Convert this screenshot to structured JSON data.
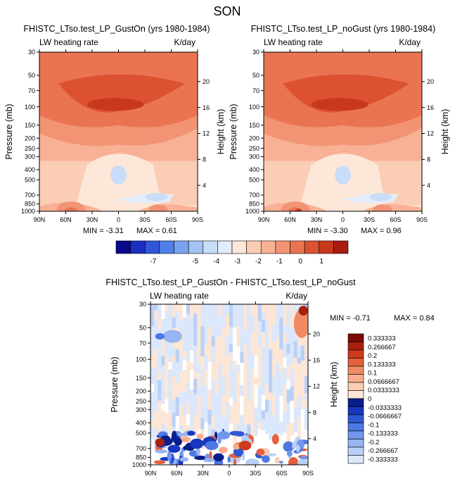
{
  "page_title": "SON",
  "colors": {
    "bg_band": "#fbe3d4",
    "cool": [
      "#08088c",
      "#1a2fbf",
      "#2f56d6",
      "#4f7fe6",
      "#7aa3ef",
      "#a2c3f4",
      "#c9dcf8",
      "#e2edfb"
    ],
    "warm": [
      "#fde7d8",
      "#fbcdb4",
      "#f8b195",
      "#f29474",
      "#ea7452",
      "#dc5231",
      "#c8381c",
      "#a81d0f",
      "#7d0a05"
    ],
    "diff_cool": [
      "#081e8c",
      "#1737bd",
      "#2e57d4",
      "#4d78e3",
      "#7196ec",
      "#97b5f2",
      "#bbd0f7",
      "#dbe7fb"
    ],
    "diff_warm": [
      "#fde6d6",
      "#fbcdb3",
      "#f7ad8c",
      "#f08a63",
      "#e4613c",
      "#cc3b1e",
      "#a8200d",
      "#7a0a04"
    ]
  },
  "chart_data": [
    {
      "type": "heatmap",
      "title": "FHISTC_LTso.test_LP_GustOn (yrs 1980-1984)",
      "left_string": "LW heating rate",
      "right_string": "K/day",
      "ylabel": "Pressure (mb)",
      "ylabel_right": "Height (km)",
      "x_ticks": [
        "90N",
        "60N",
        "30N",
        "0",
        "30S",
        "60S",
        "90S"
      ],
      "y_ticks": [
        "30",
        "50",
        "70",
        "100",
        "150",
        "200",
        "250",
        "300",
        "400",
        "500",
        "700",
        "850",
        "1000"
      ],
      "height_ticks": [
        "20",
        "16",
        "12",
        "8",
        "4"
      ],
      "min_label": "MIN = -3.31",
      "max_label": "MAX =  0.61",
      "min": -3.31,
      "max": 0.61
    },
    {
      "type": "heatmap",
      "title": "FHISTC_LTso.test_LP_noGust (yrs 1980-1984)",
      "left_string": "LW heating rate",
      "right_string": "K/day",
      "ylabel": "Pressure (mb)",
      "ylabel_right": "Height (km)",
      "x_ticks": [
        "90N",
        "60N",
        "30N",
        "0",
        "30S",
        "60S",
        "90S"
      ],
      "y_ticks": [
        "30",
        "50",
        "70",
        "100",
        "150",
        "200",
        "250",
        "300",
        "400",
        "500",
        "700",
        "850",
        "1000"
      ],
      "height_ticks": [
        "20",
        "16",
        "12",
        "8",
        "4"
      ],
      "min_label": "MIN = -3.30",
      "max_label": "MAX =  0.96",
      "min": -3.3,
      "max": 0.96
    },
    {
      "type": "heatmap",
      "title": "FHISTC_LTso.test_LP_GustOn - FHISTC_LTso.test_LP_noGust",
      "left_string": "LW heating rate",
      "right_string": "K/day",
      "ylabel": "Pressure (mb)",
      "ylabel_right": "Height (km)",
      "x_ticks": [
        "90N",
        "60N",
        "30N",
        "0",
        "30S",
        "60S",
        "90S"
      ],
      "y_ticks": [
        "30",
        "50",
        "70",
        "100",
        "150",
        "200",
        "250",
        "300",
        "400",
        "500",
        "700",
        "850",
        "1000"
      ],
      "height_ticks": [
        "20",
        "16",
        "12",
        "8",
        "4"
      ],
      "min_label": "MIN = -0.71",
      "max_label": "MAX =  0.84",
      "min": -0.71,
      "max": 0.84
    }
  ],
  "colorbar_top": {
    "labels": [
      "-7",
      "-5",
      "-4",
      "-3",
      "-2",
      "-1",
      "0",
      "1"
    ]
  },
  "colorbar_diff": {
    "labels": [
      "0.333333",
      "0.266667",
      "0.2",
      "0.133333",
      "0.1",
      "0.0666667",
      "0.0333333",
      "0",
      "-0.0333333",
      "-0.0666667",
      "-0.1",
      "-0.133333",
      "-0.2",
      "-0.266667",
      "-0.333333"
    ]
  }
}
